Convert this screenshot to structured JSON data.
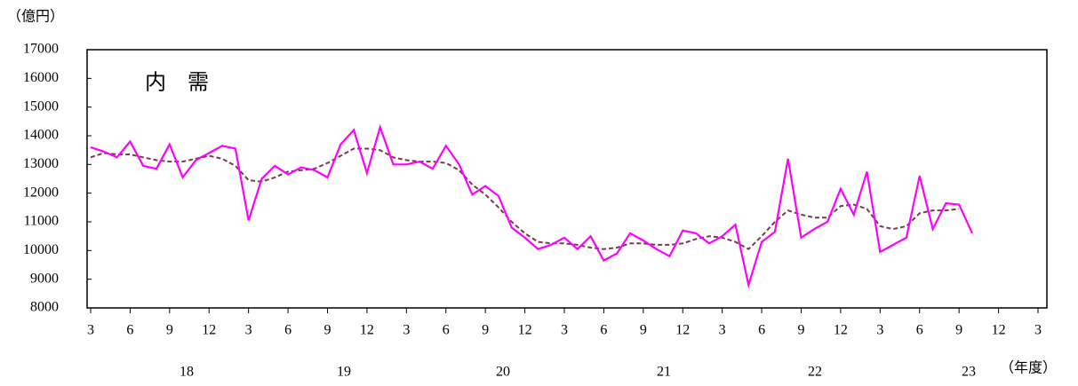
{
  "chart_data": {
    "type": "line",
    "y_unit": "（億円）",
    "annotation": "内　需",
    "x_label": "（年度）",
    "year_labels": [
      "18",
      "19",
      "20",
      "21",
      "22",
      "23"
    ],
    "categories": [
      "3",
      null,
      null,
      "6",
      null,
      null,
      "9",
      null,
      null,
      "12",
      null,
      null,
      "3",
      null,
      null,
      "6",
      null,
      null,
      "9",
      null,
      null,
      "12",
      null,
      null,
      "3",
      null,
      null,
      "6",
      null,
      null,
      "9",
      null,
      null,
      "12",
      null,
      null,
      "3",
      null,
      null,
      "6",
      null,
      null,
      "9",
      null,
      null,
      "12",
      null,
      null,
      "3",
      null,
      null,
      "6",
      null,
      null,
      "9",
      null,
      null,
      "12",
      null,
      null,
      "3",
      null,
      null,
      "6",
      null,
      null,
      "9",
      null,
      null,
      "12",
      null,
      null,
      "3"
    ],
    "series": [
      {
        "color": "#ff00ff",
        "style": "solid",
        "values": [
          13600,
          13450,
          13250,
          13800,
          12950,
          12850,
          13700,
          12550,
          13150,
          13400,
          13650,
          13550,
          11050,
          12500,
          12950,
          12650,
          12900,
          12800,
          12550,
          13700,
          14200,
          12700,
          14300,
          13000,
          13000,
          13100,
          12850,
          13650,
          13000,
          11950,
          12250,
          11900,
          10800,
          10450,
          10050,
          10200,
          10450,
          10050,
          10500,
          9650,
          9900,
          10600,
          10350,
          10050,
          9800,
          10700,
          10600,
          10250,
          10500,
          10900,
          8800,
          10300,
          10650,
          13200,
          10450,
          10750,
          11000,
          12150,
          11250,
          12750,
          9950,
          10200,
          10450,
          12600,
          10750,
          11650,
          11600,
          10600,
          null,
          null,
          null,
          null,
          null
        ]
      },
      {
        "color": "#7a3a4a",
        "style": "dashed",
        "values": [
          13250,
          13400,
          13350,
          13350,
          13250,
          13150,
          13100,
          13100,
          13200,
          13300,
          13200,
          12950,
          12450,
          12400,
          12550,
          12750,
          12800,
          12850,
          13050,
          13300,
          13550,
          13550,
          13500,
          13250,
          13150,
          13100,
          13100,
          13050,
          12800,
          12300,
          11950,
          11500,
          11000,
          10600,
          10300,
          10250,
          10250,
          10200,
          10100,
          10050,
          10100,
          10250,
          10250,
          10200,
          10200,
          10250,
          10400,
          10500,
          10450,
          10300,
          10050,
          10500,
          11000,
          11400,
          11250,
          11150,
          11150,
          11550,
          11600,
          11450,
          10850,
          10750,
          10850,
          11300,
          11400,
          11400,
          11450,
          null,
          null,
          null,
          null,
          null,
          null
        ]
      }
    ],
    "ylim": [
      8000,
      17000
    ],
    "yticks": [
      8000,
      9000,
      10000,
      11000,
      12000,
      13000,
      14000,
      15000,
      16000,
      17000
    ],
    "grid": false
  }
}
